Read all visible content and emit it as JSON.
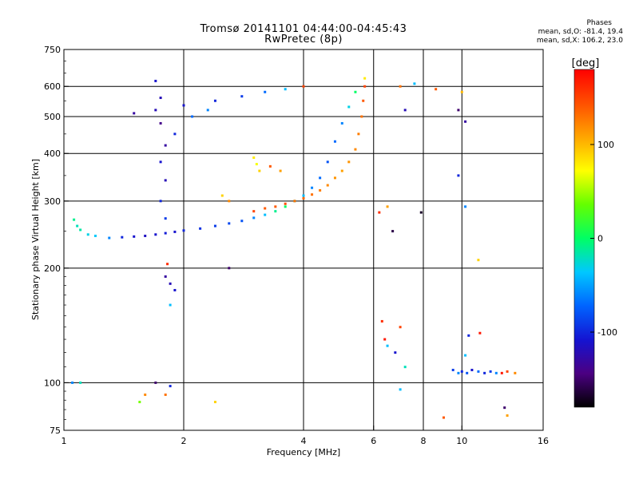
{
  "header": {
    "title_line1": "Tromsø 20141101 04:44:00-04:45:43",
    "title_line2": "RwPretec (8p)"
  },
  "phase_info": {
    "title": "Phases",
    "line_o": "mean, sd,O: -81.4, 19.4",
    "line_x": "mean, sd,X: 106.2, 23.0"
  },
  "colorbar": {
    "unit": "[deg]",
    "range": [
      -180,
      180
    ],
    "ticks": [
      {
        "value": 100,
        "label": "100"
      },
      {
        "value": 0,
        "label": "0"
      },
      {
        "value": -100,
        "label": "-100"
      }
    ],
    "color_stops": [
      "#000000",
      "#4b0082",
      "#1414d2",
      "#0064ff",
      "#00c8ff",
      "#00ff64",
      "#64ff00",
      "#ffff00",
      "#ffa500",
      "#ff5000",
      "#ff0000"
    ]
  },
  "chart_data": {
    "type": "scatter",
    "title": "Tromsø 20141101 04:44:00-04:45:43",
    "subtitle": "RwPretec (8p)",
    "xlabel": "Frequency [MHz]",
    "ylabel": "Stationary phase Virtual Height [km]",
    "xscale": "log",
    "yscale": "log",
    "xlim": [
      1,
      16
    ],
    "ylim": [
      75,
      750
    ],
    "grid": true,
    "xticks": [
      {
        "value": 1,
        "label": "1",
        "grid": false
      },
      {
        "value": 2,
        "label": "2",
        "grid": true
      },
      {
        "value": 4,
        "label": "4",
        "grid": true
      },
      {
        "value": 6,
        "label": "6",
        "grid": true
      },
      {
        "value": 8,
        "label": "8",
        "grid": true
      },
      {
        "value": 10,
        "label": "10",
        "grid": true
      },
      {
        "value": 16,
        "label": "16",
        "grid": false
      }
    ],
    "yticks": [
      {
        "value": 75,
        "label": "75",
        "grid": false
      },
      {
        "value": 100,
        "label": "100",
        "grid": true
      },
      {
        "value": 200,
        "label": "200",
        "grid": true
      },
      {
        "value": 300,
        "label": "300",
        "grid": true
      },
      {
        "value": 400,
        "label": "400",
        "grid": true
      },
      {
        "value": 500,
        "label": "500",
        "grid": true
      },
      {
        "value": 600,
        "label": "600",
        "grid": true
      },
      {
        "value": 750,
        "label": "750",
        "grid": false
      }
    ],
    "color_by": "phase [deg]",
    "points": [
      {
        "x": 1.06,
        "y": 268,
        "phase": -10
      },
      {
        "x": 1.08,
        "y": 258,
        "phase": -20
      },
      {
        "x": 1.1,
        "y": 252,
        "phase": -15
      },
      {
        "x": 1.15,
        "y": 245,
        "phase": -30
      },
      {
        "x": 1.2,
        "y": 243,
        "phase": -35
      },
      {
        "x": 1.3,
        "y": 240,
        "phase": -60
      },
      {
        "x": 1.4,
        "y": 241,
        "phase": -100
      },
      {
        "x": 1.5,
        "y": 242,
        "phase": -110
      },
      {
        "x": 1.6,
        "y": 243,
        "phase": -115
      },
      {
        "x": 1.7,
        "y": 245,
        "phase": -110
      },
      {
        "x": 1.8,
        "y": 247,
        "phase": -105
      },
      {
        "x": 1.9,
        "y": 249,
        "phase": -110
      },
      {
        "x": 2.0,
        "y": 251,
        "phase": -100
      },
      {
        "x": 2.2,
        "y": 254,
        "phase": -95
      },
      {
        "x": 2.4,
        "y": 258,
        "phase": -90
      },
      {
        "x": 2.6,
        "y": 262,
        "phase": -85
      },
      {
        "x": 2.8,
        "y": 266,
        "phase": -80
      },
      {
        "x": 3.0,
        "y": 271,
        "phase": -60
      },
      {
        "x": 3.2,
        "y": 276,
        "phase": -40
      },
      {
        "x": 3.4,
        "y": 282,
        "phase": -10
      },
      {
        "x": 3.6,
        "y": 290,
        "phase": 0
      },
      {
        "x": 3.8,
        "y": 300,
        "phase": -20
      },
      {
        "x": 4.0,
        "y": 310,
        "phase": -40
      },
      {
        "x": 4.2,
        "y": 325,
        "phase": -60
      },
      {
        "x": 4.4,
        "y": 345,
        "phase": -70
      },
      {
        "x": 4.6,
        "y": 380,
        "phase": -80
      },
      {
        "x": 4.8,
        "y": 430,
        "phase": -70
      },
      {
        "x": 5.0,
        "y": 480,
        "phase": -60
      },
      {
        "x": 5.2,
        "y": 530,
        "phase": -30
      },
      {
        "x": 5.4,
        "y": 580,
        "phase": 0
      },
      {
        "x": 3.0,
        "y": 282,
        "phase": 150
      },
      {
        "x": 3.2,
        "y": 287,
        "phase": 140
      },
      {
        "x": 3.4,
        "y": 290,
        "phase": 140
      },
      {
        "x": 3.6,
        "y": 295,
        "phase": 145
      },
      {
        "x": 3.8,
        "y": 300,
        "phase": 130
      },
      {
        "x": 4.0,
        "y": 305,
        "phase": 135
      },
      {
        "x": 4.2,
        "y": 312,
        "phase": 130
      },
      {
        "x": 4.4,
        "y": 320,
        "phase": 125
      },
      {
        "x": 4.6,
        "y": 330,
        "phase": 120
      },
      {
        "x": 4.8,
        "y": 345,
        "phase": 115
      },
      {
        "x": 5.0,
        "y": 360,
        "phase": 110
      },
      {
        "x": 5.2,
        "y": 380,
        "phase": 115
      },
      {
        "x": 5.4,
        "y": 410,
        "phase": 120
      },
      {
        "x": 5.5,
        "y": 450,
        "phase": 125
      },
      {
        "x": 5.6,
        "y": 500,
        "phase": 130
      },
      {
        "x": 5.65,
        "y": 550,
        "phase": 140
      },
      {
        "x": 5.7,
        "y": 600,
        "phase": 150
      },
      {
        "x": 5.7,
        "y": 630,
        "phase": 80
      },
      {
        "x": 1.5,
        "y": 510,
        "phase": -130
      },
      {
        "x": 1.7,
        "y": 520,
        "phase": -120
      },
      {
        "x": 2.0,
        "y": 535,
        "phase": -110
      },
      {
        "x": 2.4,
        "y": 550,
        "phase": -100
      },
      {
        "x": 2.8,
        "y": 565,
        "phase": -90
      },
      {
        "x": 3.2,
        "y": 580,
        "phase": -70
      },
      {
        "x": 3.6,
        "y": 590,
        "phase": -40
      },
      {
        "x": 4.0,
        "y": 600,
        "phase": 150
      },
      {
        "x": 1.7,
        "y": 620,
        "phase": -110
      },
      {
        "x": 1.75,
        "y": 560,
        "phase": -120
      },
      {
        "x": 1.75,
        "y": 480,
        "phase": -140
      },
      {
        "x": 1.8,
        "y": 420,
        "phase": -130
      },
      {
        "x": 1.75,
        "y": 380,
        "phase": -110
      },
      {
        "x": 1.8,
        "y": 340,
        "phase": -120
      },
      {
        "x": 1.75,
        "y": 300,
        "phase": -100
      },
      {
        "x": 1.8,
        "y": 270,
        "phase": -90
      },
      {
        "x": 1.9,
        "y": 450,
        "phase": -100
      },
      {
        "x": 2.1,
        "y": 500,
        "phase": -70
      },
      {
        "x": 2.3,
        "y": 520,
        "phase": -60
      },
      {
        "x": 3.0,
        "y": 390,
        "phase": 80
      },
      {
        "x": 3.05,
        "y": 375,
        "phase": 70
      },
      {
        "x": 3.1,
        "y": 360,
        "phase": 90
      },
      {
        "x": 3.3,
        "y": 370,
        "phase": 140
      },
      {
        "x": 3.5,
        "y": 360,
        "phase": 110
      },
      {
        "x": 2.5,
        "y": 310,
        "phase": 90
      },
      {
        "x": 2.6,
        "y": 300,
        "phase": 120
      },
      {
        "x": 1.8,
        "y": 190,
        "phase": -130
      },
      {
        "x": 1.85,
        "y": 182,
        "phase": -120
      },
      {
        "x": 1.9,
        "y": 175,
        "phase": -110
      },
      {
        "x": 1.82,
        "y": 205,
        "phase": 160
      },
      {
        "x": 1.85,
        "y": 160,
        "phase": -40
      },
      {
        "x": 1.05,
        "y": 100,
        "phase": -60
      },
      {
        "x": 1.1,
        "y": 100,
        "phase": -20
      },
      {
        "x": 1.7,
        "y": 100,
        "phase": -150
      },
      {
        "x": 1.85,
        "y": 98,
        "phase": -100
      },
      {
        "x": 1.6,
        "y": 93,
        "phase": 120
      },
      {
        "x": 1.8,
        "y": 93,
        "phase": 130
      },
      {
        "x": 2.4,
        "y": 89,
        "phase": 90
      },
      {
        "x": 1.55,
        "y": 89,
        "phase": 40
      },
      {
        "x": 2.6,
        "y": 200,
        "phase": -150
      },
      {
        "x": 6.3,
        "y": 145,
        "phase": 160
      },
      {
        "x": 6.4,
        "y": 130,
        "phase": 170
      },
      {
        "x": 6.5,
        "y": 125,
        "phase": -40
      },
      {
        "x": 6.8,
        "y": 120,
        "phase": -110
      },
      {
        "x": 7.0,
        "y": 140,
        "phase": 150
      },
      {
        "x": 7.2,
        "y": 110,
        "phase": -20
      },
      {
        "x": 7.0,
        "y": 96,
        "phase": -40
      },
      {
        "x": 6.2,
        "y": 280,
        "phase": 160
      },
      {
        "x": 6.5,
        "y": 290,
        "phase": 110
      },
      {
        "x": 6.7,
        "y": 250,
        "phase": -160
      },
      {
        "x": 7.9,
        "y": 280,
        "phase": -170
      },
      {
        "x": 7.2,
        "y": 520,
        "phase": -120
      },
      {
        "x": 7.0,
        "y": 600,
        "phase": 130
      },
      {
        "x": 7.6,
        "y": 610,
        "phase": -40
      },
      {
        "x": 9.5,
        "y": 108,
        "phase": -90
      },
      {
        "x": 9.8,
        "y": 106,
        "phase": -60
      },
      {
        "x": 10.0,
        "y": 107,
        "phase": -100
      },
      {
        "x": 10.3,
        "y": 106,
        "phase": -80
      },
      {
        "x": 10.6,
        "y": 108,
        "phase": -110
      },
      {
        "x": 11.0,
        "y": 107,
        "phase": -70
      },
      {
        "x": 11.4,
        "y": 106,
        "phase": -100
      },
      {
        "x": 11.8,
        "y": 107,
        "phase": -90
      },
      {
        "x": 12.2,
        "y": 106,
        "phase": -60
      },
      {
        "x": 12.6,
        "y": 106,
        "phase": 170
      },
      {
        "x": 13.0,
        "y": 107,
        "phase": 150
      },
      {
        "x": 13.6,
        "y": 106,
        "phase": 120
      },
      {
        "x": 10.4,
        "y": 133,
        "phase": -100
      },
      {
        "x": 11.1,
        "y": 135,
        "phase": 170
      },
      {
        "x": 10.2,
        "y": 118,
        "phase": -40
      },
      {
        "x": 12.8,
        "y": 86,
        "phase": -150
      },
      {
        "x": 13.0,
        "y": 82,
        "phase": 110
      },
      {
        "x": 9.0,
        "y": 81,
        "phase": 140
      },
      {
        "x": 9.8,
        "y": 520,
        "phase": -150
      },
      {
        "x": 9.8,
        "y": 350,
        "phase": -100
      },
      {
        "x": 10.2,
        "y": 290,
        "phase": -60
      },
      {
        "x": 11.0,
        "y": 210,
        "phase": 90
      },
      {
        "x": 10.0,
        "y": 580,
        "phase": 100
      },
      {
        "x": 8.6,
        "y": 590,
        "phase": 140
      },
      {
        "x": 10.2,
        "y": 485,
        "phase": -130
      }
    ]
  }
}
